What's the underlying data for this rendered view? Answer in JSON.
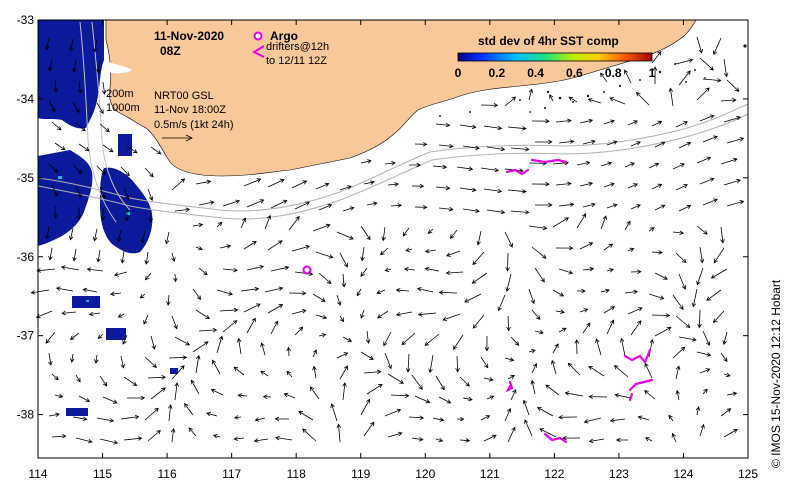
{
  "map": {
    "header": {
      "date": "11-Nov-2020",
      "time": "08Z"
    },
    "legend": {
      "argo_label": "Argo",
      "drifters_label_line1": "drifters@12h",
      "drifters_label_line2": "to 12/11 12Z",
      "argo_marker_color": "#e000e0",
      "drifter_color": "#e000e0"
    },
    "colorbar": {
      "title": "std dev of 4hr SST comp",
      "ticks": [
        "0",
        "0.2",
        "0.4",
        "0.6",
        "0.8",
        "1"
      ]
    },
    "isobaths": {
      "label_200": "200m",
      "label_1000": "1000m"
    },
    "model_info": {
      "line1": "NRT00 GSL",
      "line2": "11-Nov 18:00Z",
      "line3": "0.5m/s (1kt 24h)"
    },
    "axes": {
      "x_ticks": [
        "114",
        "115",
        "116",
        "117",
        "118",
        "119",
        "120",
        "121",
        "122",
        "123",
        "124",
        "125"
      ],
      "y_ticks": [
        "-33",
        "-34",
        "-35",
        "-36",
        "-37",
        "-38"
      ],
      "x_range": [
        114,
        125
      ],
      "y_range": [
        -38.55,
        -33
      ]
    },
    "credit": "© IMOS 15-Nov-2020 12:12 Hobart",
    "colors": {
      "land": "#f9c89a",
      "sst_patch": "#0a1a9a",
      "arrow": "#000000",
      "isobath": "#b0b0b0"
    }
  }
}
